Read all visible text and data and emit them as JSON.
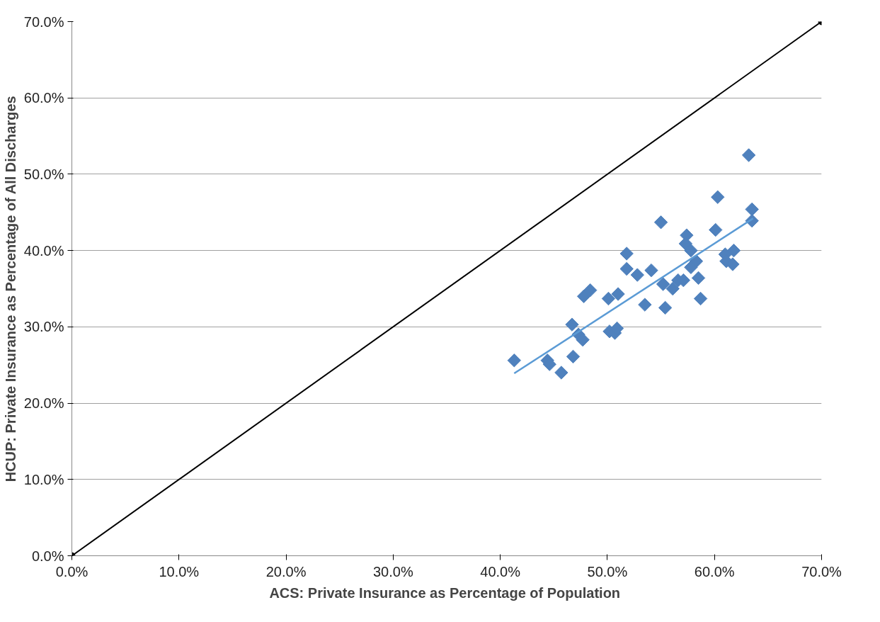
{
  "chart_data": {
    "type": "scatter",
    "xlabel": "ACS: Private Insurance as Percentage of  Population",
    "ylabel": "HCUP: Private Insurance as Percentage of All Discharges",
    "xlim": [
      0,
      70
    ],
    "ylim": [
      0,
      70
    ],
    "xticks": [
      {
        "value": 0,
        "label": "0.0%"
      },
      {
        "value": 10,
        "label": "10.0%"
      },
      {
        "value": 20,
        "label": "20.0%"
      },
      {
        "value": 30,
        "label": "30.0%"
      },
      {
        "value": 40,
        "label": "40.0%"
      },
      {
        "value": 50,
        "label": "50.0%"
      },
      {
        "value": 60,
        "label": "60.0%"
      },
      {
        "value": 70,
        "label": "70.0%"
      }
    ],
    "yticks": [
      {
        "value": 0,
        "label": "0.0%"
      },
      {
        "value": 10,
        "label": "10.0%"
      },
      {
        "value": 20,
        "label": "20.0%"
      },
      {
        "value": 30,
        "label": "30.0%"
      },
      {
        "value": 40,
        "label": "40.0%"
      },
      {
        "value": 50,
        "label": "50.0%"
      },
      {
        "value": 60,
        "label": "60.0%"
      },
      {
        "value": 70,
        "label": "70.0%"
      }
    ],
    "grid": "y",
    "series": [
      {
        "type": "line",
        "color": "#000000",
        "marker": "circle",
        "x": [
          0,
          70
        ],
        "values": [
          0,
          70
        ]
      },
      {
        "color": "#4f81bd",
        "marker": "diamond",
        "x": [
          41.3,
          44.4,
          44.6,
          46.8,
          45.7,
          46.7,
          47.3,
          47.7,
          47.8,
          48.4,
          50.1,
          51.0,
          50.2,
          50.7,
          50.9,
          51.8,
          51.8,
          52.8,
          54.1,
          53.5,
          55.0,
          55.2,
          55.4,
          56.1,
          56.6,
          57.1,
          57.4,
          57.3,
          57.8,
          58.3,
          58.5,
          58.7,
          57.8,
          60.1,
          60.3,
          61.0,
          61.8,
          61.1,
          61.7,
          63.2,
          63.5,
          63.5
        ],
        "values": [
          25.6,
          25.6,
          25.1,
          26.1,
          24.0,
          30.3,
          29.0,
          28.3,
          34.0,
          34.8,
          33.7,
          34.3,
          29.4,
          29.2,
          29.8,
          39.6,
          37.6,
          36.8,
          37.4,
          32.9,
          43.7,
          35.6,
          32.5,
          35.0,
          36.1,
          36.1,
          42.0,
          40.9,
          40.0,
          38.6,
          36.4,
          33.7,
          37.8,
          42.7,
          47.0,
          39.5,
          40.0,
          38.6,
          38.2,
          52.5,
          45.4,
          43.9
        ]
      },
      {
        "type": "line",
        "color": "#5b9bd5",
        "marker": "none",
        "x": [
          41.3,
          63.6
        ],
        "values": [
          23.9,
          44.2
        ]
      }
    ]
  }
}
